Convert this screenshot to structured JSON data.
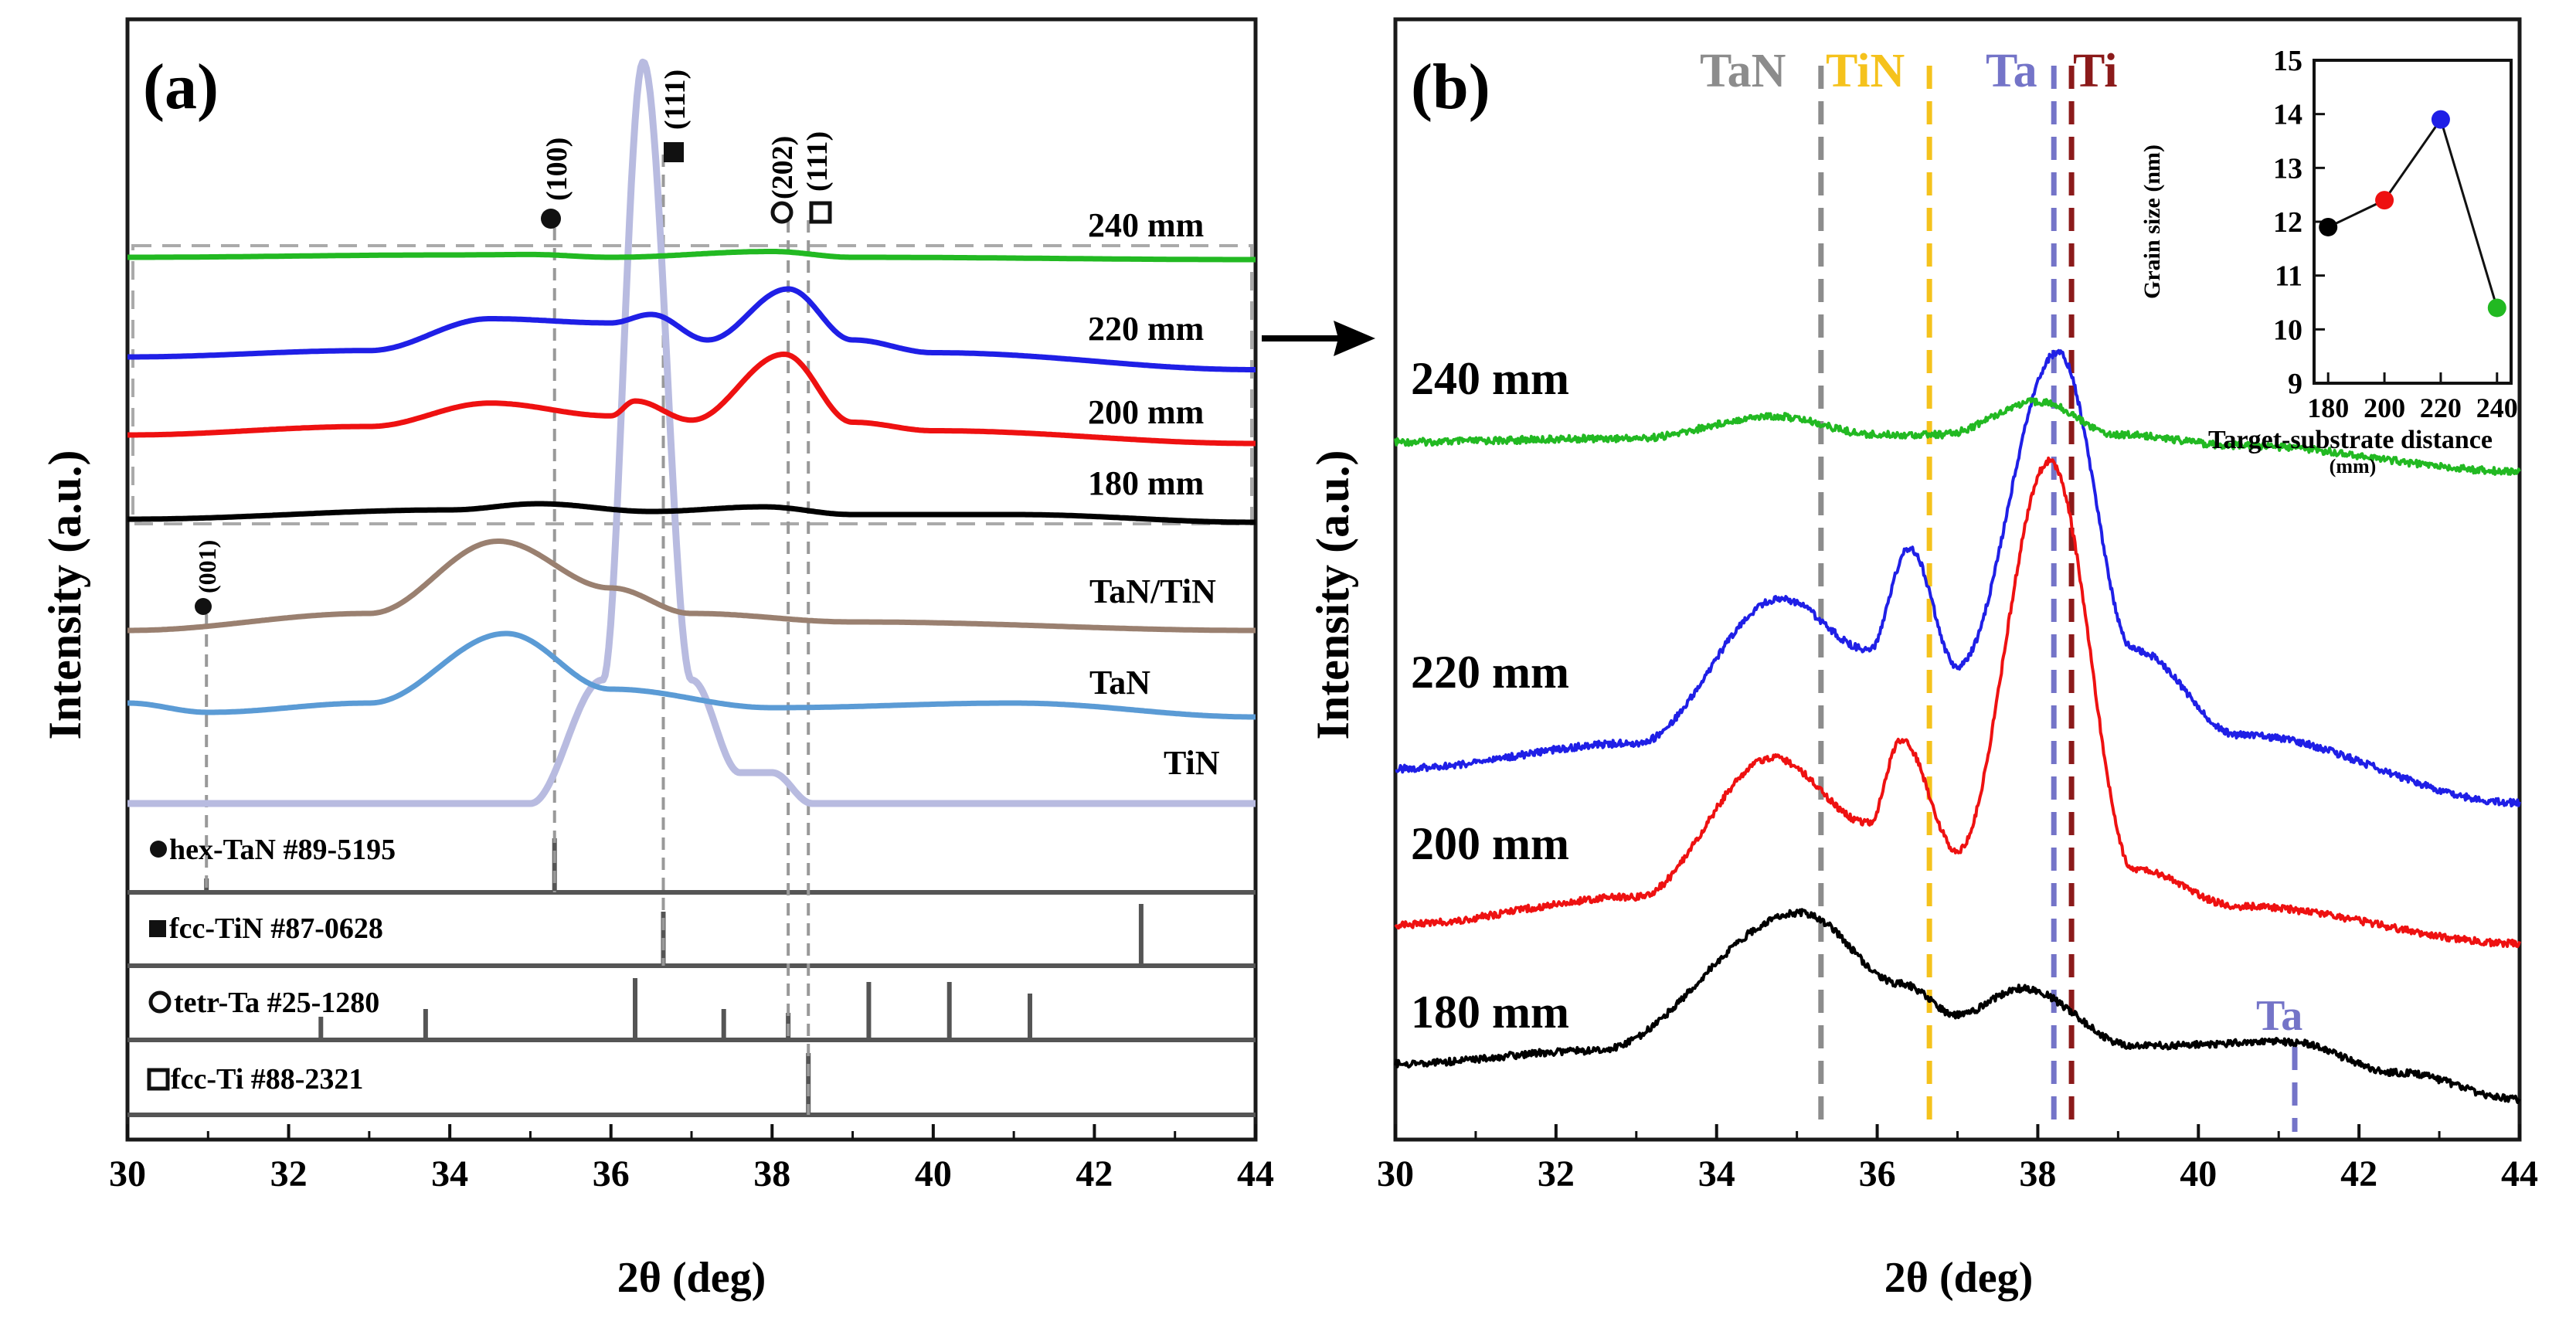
{
  "chart_data": [
    {
      "type": "line",
      "panel_label": "(a)",
      "xlabel": "2θ (deg)",
      "ylabel": "Intensity (a.u.)",
      "xlim": [
        30,
        44
      ],
      "x_ticks": [
        "30",
        "32",
        "34",
        "36",
        "38",
        "40",
        "42",
        "44"
      ],
      "colors": {
        "240 mm": "#22b922",
        "220 mm": "#1f1fe6",
        "200 mm": "#ee1111",
        "180 mm": "#000000",
        "TaN/TiN": "#9a8070",
        "TaN": "#5b9bd5",
        "TiN": "#b8bbe0"
      },
      "series": [
        {
          "name": "240 mm",
          "x": [
            30,
            34,
            35,
            36,
            38,
            39,
            44
          ],
          "y": [
            0.0,
            0.1,
            0.12,
            0.0,
            0.25,
            0.0,
            -0.1
          ]
        },
        {
          "name": "220 mm",
          "x": [
            30,
            33,
            34.5,
            36,
            36.5,
            37.2,
            38.2,
            39,
            40,
            44
          ],
          "y": [
            0.0,
            0.15,
            0.9,
            0.8,
            1.0,
            0.4,
            1.6,
            0.4,
            0.1,
            -0.3
          ]
        },
        {
          "name": "200 mm",
          "x": [
            30,
            33,
            34.5,
            36,
            36.3,
            37,
            38.15,
            39,
            40,
            44
          ],
          "y": [
            0.0,
            0.2,
            0.75,
            0.45,
            0.8,
            0.35,
            1.9,
            0.3,
            0.1,
            -0.2
          ]
        },
        {
          "name": "180 mm",
          "x": [
            30,
            34,
            35.1,
            36.5,
            37.9,
            39,
            41,
            44
          ],
          "y": [
            0.0,
            0.3,
            0.5,
            0.25,
            0.4,
            0.15,
            0.15,
            -0.1
          ]
        },
        {
          "name": "TaN/TiN",
          "x": [
            30,
            33,
            34.6,
            36,
            37,
            39,
            44
          ],
          "y": [
            0.0,
            0.4,
            2.1,
            1.0,
            0.4,
            0.2,
            0.0
          ]
        },
        {
          "name": "TaN",
          "x": [
            30,
            31,
            33,
            34.7,
            36,
            38,
            41,
            44
          ],
          "y": [
            0.2,
            0.0,
            0.2,
            1.7,
            0.5,
            0.1,
            0.2,
            -0.1
          ]
        },
        {
          "name": "TiN",
          "x": [
            30,
            35,
            35.9,
            36.4,
            37,
            37.6,
            38,
            38.5,
            44
          ],
          "y": [
            0.0,
            0.0,
            2.0,
            12.0,
            2.0,
            0.5,
            0.5,
            0.0,
            0.0
          ]
        }
      ],
      "peak_labels": [
        {
          "label": "(100)",
          "symbol": "circle-filled",
          "x": 35.3
        },
        {
          "label": "(111)",
          "symbol": "square-filled",
          "x": 36.65
        },
        {
          "label": "(202)",
          "symbol": "circle-open",
          "x": 38.2
        },
        {
          "label": "(111)",
          "symbol": "square-open",
          "x": 38.45
        },
        {
          "label": "(001)",
          "symbol": "circle-filled",
          "x": 30.98
        }
      ],
      "reference_patterns": [
        {
          "name": "hex-TaN #89-5195",
          "symbol": "circle-filled",
          "peaks": [
            30.98,
            35.3
          ]
        },
        {
          "name": "fcc-TiN #87-0628",
          "symbol": "square-filled",
          "peaks": [
            36.65,
            42.58
          ]
        },
        {
          "name": "tetr-Ta #25-1280",
          "symbol": "circle-open",
          "peaks": [
            32.4,
            33.7,
            36.3,
            37.4,
            38.2,
            39.2,
            40.2,
            41.2
          ]
        },
        {
          "name": "fcc-Ti #88-2321",
          "symbol": "square-open",
          "peaks": [
            38.45
          ]
        }
      ]
    },
    {
      "type": "line",
      "panel_label": "(b)",
      "xlabel": "2θ (deg)",
      "ylabel": "Intensity (a.u.)",
      "xlim": [
        30,
        44
      ],
      "x_ticks": [
        "30",
        "32",
        "34",
        "36",
        "38",
        "40",
        "42",
        "44"
      ],
      "colors": {
        "240 mm": "#22b922",
        "220 mm": "#1f1fe6",
        "200 mm": "#ee1111",
        "180 mm": "#000000"
      },
      "series": [
        {
          "name": "240 mm",
          "x": [
            30,
            33,
            34.7,
            36,
            36.8,
            38,
            39,
            40.5,
            44
          ],
          "y": [
            0.0,
            0.05,
            0.35,
            0.1,
            0.1,
            0.55,
            0.1,
            -0.05,
            -0.4
          ]
        },
        {
          "name": "220 mm",
          "x": [
            30,
            33,
            34.8,
            35.9,
            36.4,
            37.0,
            38.25,
            39.2,
            40.5,
            44
          ],
          "y": [
            0.0,
            0.3,
            2.0,
            1.4,
            2.6,
            1.2,
            4.9,
            1.4,
            0.4,
            -0.4
          ]
        },
        {
          "name": "200 mm",
          "x": [
            30,
            33,
            34.7,
            35.9,
            36.3,
            37.0,
            38.15,
            39.2,
            40.5,
            44
          ],
          "y": [
            0.0,
            0.3,
            1.8,
            1.1,
            2.0,
            0.8,
            5.0,
            0.6,
            0.2,
            -0.2
          ]
        },
        {
          "name": "180 mm",
          "x": [
            30,
            32.5,
            35.05,
            36.3,
            37.0,
            37.8,
            39.2,
            41.1,
            42.5,
            44
          ],
          "y": [
            0.0,
            0.15,
            1.7,
            0.9,
            0.55,
            0.85,
            0.2,
            0.25,
            -0.1,
            -0.4
          ]
        }
      ],
      "reference_lines": [
        {
          "name": "TaN",
          "x": 35.3,
          "color": "#8c8c8c"
        },
        {
          "name": "TiN",
          "x": 36.65,
          "color": "#f5c21c"
        },
        {
          "name": "Ta",
          "x": 38.2,
          "color": "#7474c8"
        },
        {
          "name": "Ti",
          "x": 38.42,
          "color": "#8b1a1a"
        },
        {
          "name": "Ta",
          "x": 41.2,
          "color": "#7474c8"
        }
      ],
      "inset": {
        "type": "scatter",
        "xlabel": "Target-substrate distance",
        "xlabel_unit": "(mm)",
        "ylabel": "Grain size (nm)",
        "x": [
          180,
          200,
          220,
          240
        ],
        "y": [
          11.9,
          12.4,
          13.9,
          10.4
        ],
        "point_colors": [
          "#000000",
          "#ee1111",
          "#1f1fe6",
          "#22b922"
        ],
        "xlim": [
          175,
          245
        ],
        "ylim": [
          9,
          15
        ],
        "x_ticks": [
          "180",
          "200",
          "220",
          "240"
        ],
        "y_ticks": [
          "9",
          "10",
          "11",
          "12",
          "13",
          "14",
          "15"
        ]
      }
    }
  ]
}
